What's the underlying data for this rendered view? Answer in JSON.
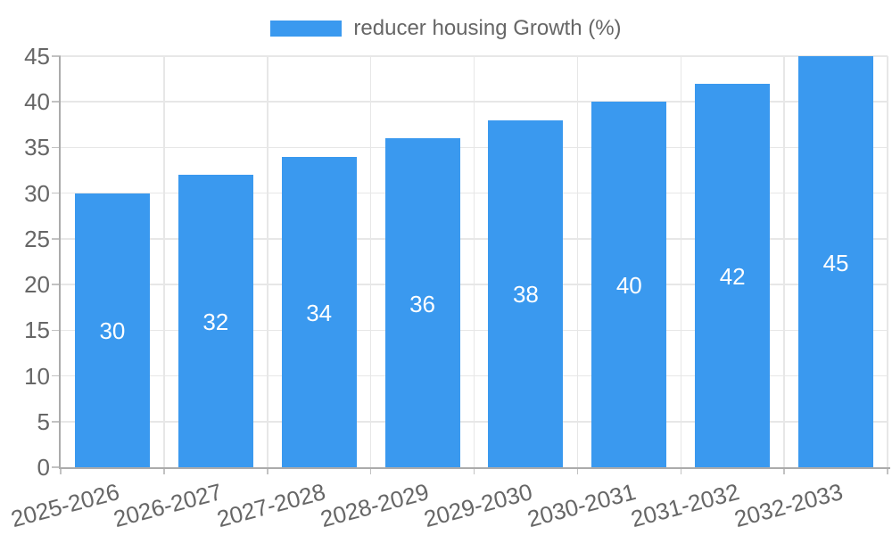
{
  "legend": {
    "label": "reducer housing Growth (%)",
    "position": "top"
  },
  "chart_data": {
    "type": "bar",
    "title": "",
    "xlabel": "",
    "ylabel": "",
    "categories": [
      "2025-2026",
      "2026-2027",
      "2027-2028",
      "2028-2029",
      "2029-2030",
      "2030-2031",
      "2031-2032",
      "2032-2033"
    ],
    "series": [
      {
        "name": "reducer housing Growth (%)",
        "values": [
          30,
          32,
          34,
          36,
          38,
          40,
          42,
          45
        ]
      }
    ],
    "data_labels_visible": true,
    "ylim": [
      0,
      45
    ],
    "ytick_step": 5,
    "yticks": [
      0,
      5,
      10,
      15,
      20,
      25,
      30,
      35,
      40,
      45
    ],
    "grid": true,
    "x_label_rotation_deg": -15,
    "legend_position": "top",
    "colors": {
      "bar": "#3A99EF",
      "grid": "#E7E7E7",
      "tick_mark": "#C2C2C2",
      "axis_border": "#ABABAB",
      "tick_text": "#666666",
      "data_label": "#FFFFFF",
      "background": "#FFFFFF"
    }
  }
}
